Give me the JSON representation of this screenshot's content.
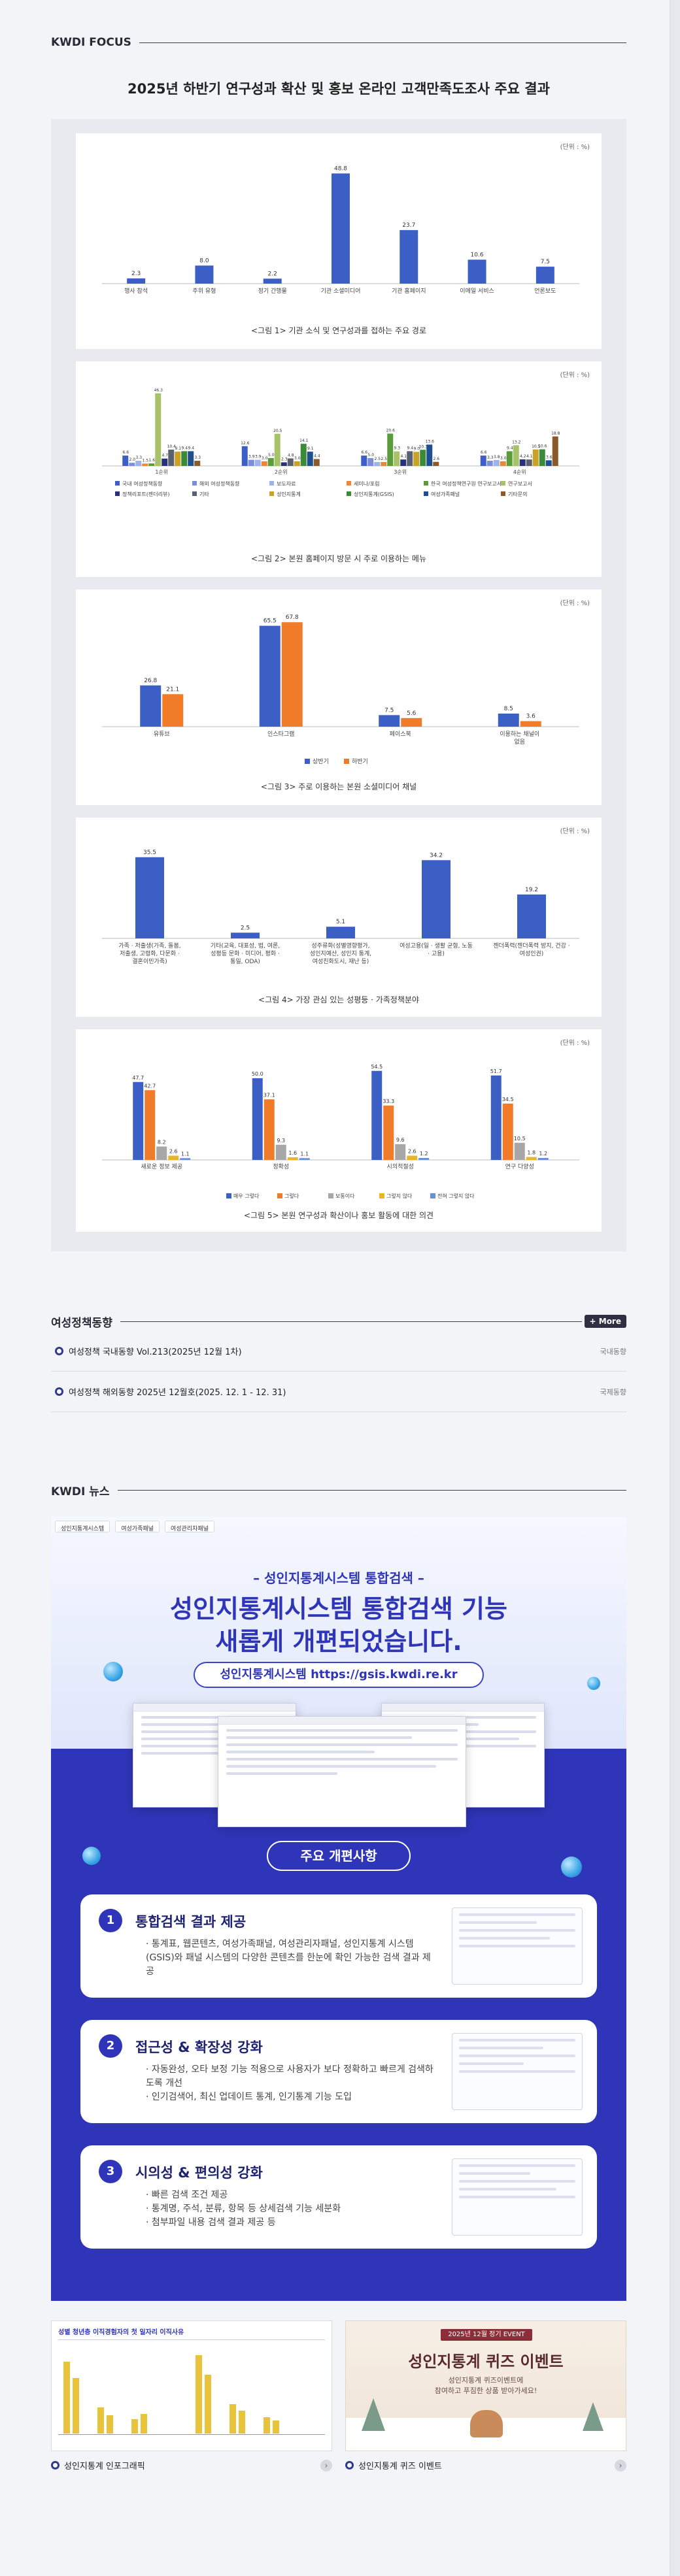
{
  "focus": {
    "section_title": "KWDI FOCUS",
    "headline": "2025년 하반기 연구성과 확산 및 홍보 온라인 고객만족도조사 주요 결과",
    "unit": "(단위 : %)"
  },
  "chart_data": [
    {
      "type": "bar",
      "categories": [
        "행사 참석",
        "주위 유형",
        "정기 간행물",
        "기관 소셜미디어",
        "기관 홈페이지",
        "이메일 서비스",
        "언론보도"
      ],
      "values": [
        2.3,
        8.0,
        2.2,
        48.8,
        23.7,
        10.6,
        7.5
      ],
      "caption": "<그림 1> 기관 소식 및 연구성과를 접하는 주요 경로",
      "color": "#3b5fc4"
    },
    {
      "type": "bar",
      "categories": [
        "1순위",
        "2순위",
        "3순위",
        "4순위"
      ],
      "series": [
        {
          "name": "국내 여성정책동향",
          "values": [
            6.6,
            12.6,
            6.6,
            6.6
          ]
        },
        {
          "name": "해외 여성정책동향",
          "values": [
            2.0,
            3.9,
            5.0,
            3.3
          ]
        },
        {
          "name": "보도자료",
          "values": [
            3.3,
            3.9,
            2.5,
            3.8
          ]
        },
        {
          "name": "세미나/포럼",
          "values": [
            1.5,
            3.0,
            2.5,
            3.0
          ]
        },
        {
          "name": "연구보고서",
          "values": [
            1.6,
            5.0,
            20.6,
            9.4
          ]
        },
        {
          "name": "정책리포트",
          "values": [
            46.3,
            20.5,
            9.3,
            13.2
          ]
        },
        {
          "name": "성인지통계",
          "values": [
            4.7,
            2.3,
            4.1,
            4.2
          ]
        },
        {
          "name": "기타",
          "values": [
            10.4,
            4.8,
            9.4,
            4.1
          ]
        },
        {
          "name": "채용/입찰",
          "values": [
            9.1,
            3.0,
            9.0,
            10.5
          ]
        },
        {
          "name": "여성가족패널",
          "values": [
            9.4,
            14.1,
            10.3,
            10.6
          ]
        },
        {
          "name": "공지사항",
          "values": [
            9.4,
            9.1,
            13.6,
            3.6
          ]
        },
        {
          "name": "뉴스레터",
          "values": [
            3.3,
            4.4,
            2.6,
            18.8
          ]
        }
      ],
      "caption": "<그림 2> 본원 홈페이지 방문 시 주로 이용하는 메뉴",
      "legend_labels": [
        "국내 여성정책동향",
        "해외 여성정책동향",
        "보도자료",
        "세미나/포럼",
        "한국 여성정책연구원 연구보고서",
        "연구보고서",
        "정책리포트(젠더리뷰)",
        "기타",
        "성인지통계",
        "성인지통계(GSIS)",
        "여성가족패널",
        "기타문의"
      ],
      "colors": [
        "#3b5fc4",
        "#7b8fd8",
        "#9fb3e8",
        "#e9873a",
        "#5b9b3a",
        "#a8c26a",
        "#27317a",
        "#59606f",
        "#c9a227",
        "#3a8a3a",
        "#1f4f8f",
        "#8b5a2b"
      ]
    },
    {
      "type": "bar",
      "categories": [
        "유튜브",
        "인스타그램",
        "페이스북",
        "이용하는 채널이 없음"
      ],
      "series": [
        {
          "name": "상반기",
          "values": [
            26.8,
            65.5,
            7.5,
            8.5
          ]
        },
        {
          "name": "하반기",
          "values": [
            21.1,
            67.8,
            5.6,
            3.6
          ]
        }
      ],
      "caption": "<그림 3> 주로 이용하는 본원 소셜미디어 채널",
      "colors": [
        "#3b5fc4",
        "#f07b29"
      ]
    },
    {
      "type": "bar",
      "categories": [
        "가족 · 저출생(가족, 돌봄, 저출생, 고령화, 다문화 · 결혼이민가족)",
        "기타(교육, 대표성, 법, 여론, 성평등 문화 · 미디어, 평화 · 통일, ODA)",
        "성주류화(성별영향평가, 성인지예산, 성인지 통계, 여성친화도시, 재난 등)",
        "여성고용(일 · 생활 균형, 노동 · 고용)",
        "젠더폭력(젠더폭력 방지, 건강 · 여성인권)"
      ],
      "values": [
        35.5,
        2.5,
        5.1,
        34.2,
        19.2
      ],
      "caption": "<그림 4> 가장 관심 있는 성평등 · 가족정책분야",
      "color": "#3b5fc4"
    },
    {
      "type": "bar",
      "categories": [
        "새로운 정보 제공",
        "정확성",
        "시의적절성",
        "연구 다양성"
      ],
      "series": [
        {
          "name": "매우 그렇다",
          "values": [
            47.7,
            50.0,
            54.5,
            51.7
          ]
        },
        {
          "name": "그렇다",
          "values": [
            42.7,
            37.1,
            33.3,
            34.5
          ]
        },
        {
          "name": "보통이다",
          "values": [
            8.2,
            9.3,
            9.6,
            10.5
          ]
        },
        {
          "name": "그렇지 않다",
          "values": [
            2.6,
            1.6,
            2.6,
            1.8
          ]
        },
        {
          "name": "전혀 그렇지 않다",
          "values": [
            1.1,
            1.1,
            1.2,
            1.2
          ]
        }
      ],
      "caption": "<그림 5> 본원 연구성과 확산이나 홍보 활동에 대한 의견",
      "colors": [
        "#3b5fc4",
        "#f07b29",
        "#a7a7a7",
        "#e8b729",
        "#6a8fd9"
      ]
    }
  ],
  "policy": {
    "section_title": "여성정책동향",
    "more_label": "+ More",
    "items": [
      {
        "text": "여성정책 국내동향 Vol.213(2025년 12월 1차)",
        "category": "국내동향"
      },
      {
        "text": "여성정책 해외동향 2025년 12월호(2025. 12. 1 - 12. 31)",
        "category": "국제동향"
      }
    ]
  },
  "news": {
    "section_title": "KWDI 뉴스",
    "banner": {
      "tabs": [
        "성인지통계시스템",
        "여성가족패널",
        "여성관리자패널"
      ],
      "subtitle": "– 성인지통계시스템 통합검색 –",
      "title_line1": "성인지통계시스템 통합검색 기능",
      "title_line2": "새롭게 개편되었습니다.",
      "url": "성인지통계시스템 https://gsis.kwdi.re.kr",
      "pill": "주요 개편사항",
      "items": [
        {
          "num": "1",
          "title": "통합검색 결과 제공",
          "body": "· 통계표, 웹콘텐츠, 여성가족패널, 여성관리자패널, 성인지통계 시스템(GSIS)와 패널 시스템의 다양한 콘텐츠를 한눈에 확인 가능한 검색 결과 제공"
        },
        {
          "num": "2",
          "title": "접근성 & 확장성 강화",
          "body": "· 자동완성, 오타 보정 기능 적용으로 사용자가 보다 정확하고 빠르게 검색하도록 개선\n· 인기검색어, 최신 업데이트 통계, 인기통계 기능 도입"
        },
        {
          "num": "3",
          "title": "시의성 & 편의성 강화",
          "body": "· 빠른 검색 조건 제공\n· 통계명, 주석, 분류, 항목 등 상세검색 기능 세분화\n· 첨부파일 내용 검색 결과 제공 등"
        }
      ]
    },
    "thumbs": [
      {
        "caption": "성인지통계 인포그래픽",
        "title": "성별 청년층 이직경험자의 첫 일자리 이직사유"
      },
      {
        "caption": "성인지통계 퀴즈 이벤트",
        "event_tag": "2025년 12월 정기 EVENT",
        "event_title": "성인지통계 퀴즈 이벤트",
        "event_sub1": "성인지통계 퀴즈이벤트에",
        "event_sub2": "참여하고 푸짐한 상품 받아가세요!"
      }
    ]
  }
}
